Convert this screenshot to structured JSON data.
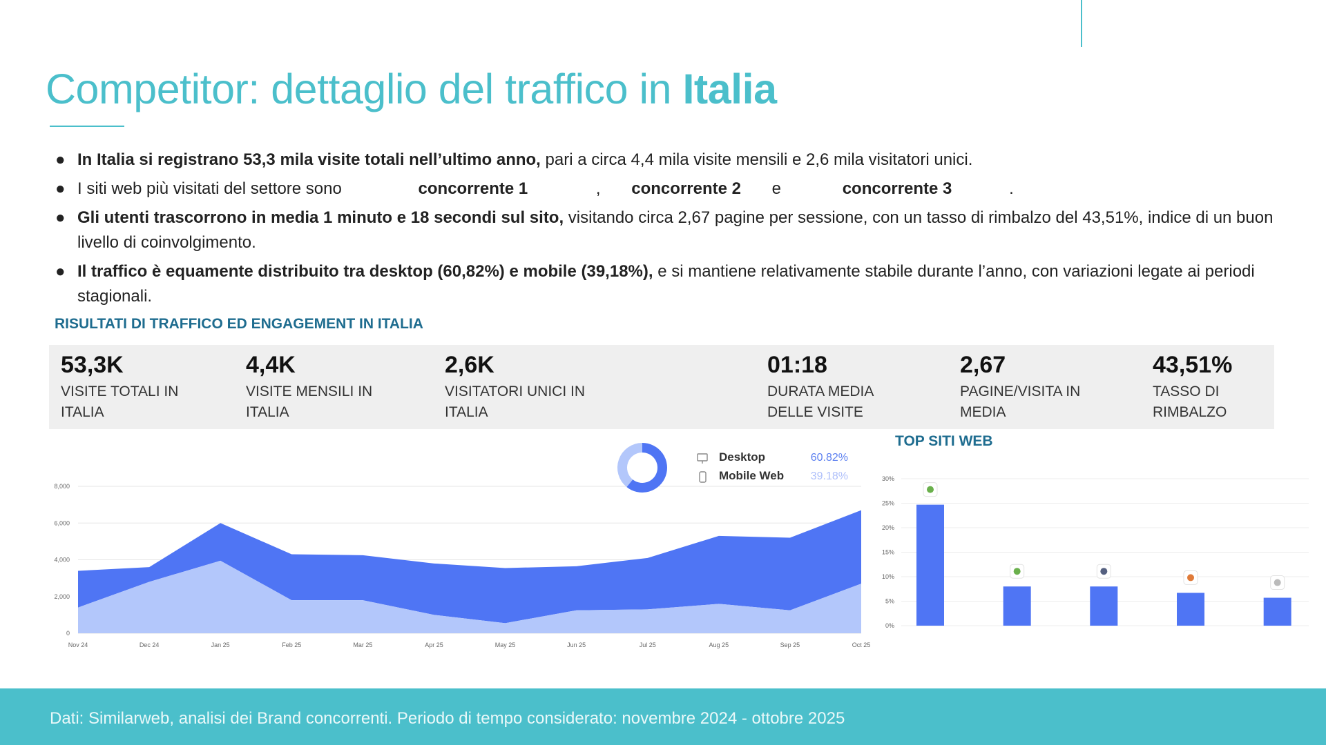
{
  "title": {
    "prefix": "Competitor: dettaglio del traffico in ",
    "strong": "Italia"
  },
  "bullets": {
    "b1": {
      "bold": "In Italia si registrano 53,3 mila visite totali nell’ultimo anno,",
      "text": " pari a circa 4,4 mila visite mensili e 2,6 mila visitatori unici."
    },
    "b2": {
      "text": "I siti web più visitati del settore sono",
      "c1": "concorrente 1",
      "comma": ",",
      "c2": "concorrente 2",
      "and": "e",
      "c3": "concorrente 3",
      "period": "."
    },
    "b3": {
      "bold": "Gli utenti trascorrono in media 1 minuto e 18 secondi sul sito,",
      "text": " visitando circa 2,67 pagine per sessione, con un tasso di rimbalzo del 43,51%, indice di un buon livello di coinvolgimento."
    },
    "b4": {
      "bold": "Il traffico è equamente distribuito tra desktop (60,82%) e mobile (39,18%),",
      "text": " e si mantiene relativamente stabile durante l’anno, con variazioni legate ai periodi stagionali."
    }
  },
  "section_title": "RISULTATI DI TRAFFICO ED ENGAGEMENT IN ITALIA",
  "kpis": [
    {
      "value": "53,3K",
      "line1": "VISITE TOTALI IN",
      "line2": "ITALIA"
    },
    {
      "value": "4,4K",
      "line1": "VISITE MENSILI IN",
      "line2": "ITALIA"
    },
    {
      "value": "2,6K",
      "line1": "VISITATORI UNICI IN",
      "line2": "ITALIA"
    },
    {
      "value": "01:18",
      "line1": "DURATA MEDIA",
      "line2": "DELLE VISITE"
    },
    {
      "value": "2,67",
      "line1": "PAGINE/VISITA IN",
      "line2": "MEDIA"
    },
    {
      "value": "43,51%",
      "line1": "TASSO DI",
      "line2": "RIMBALZO"
    }
  ],
  "top_sites_title": "TOP SITI WEB",
  "footer": "Dati: Similarweb, analisi dei Brand concorrenti. Periodo di tempo considerato: novembre 2024 - ottobre 2025",
  "colors": {
    "accent": "#4bbfcb",
    "section": "#1e6c8f",
    "desktop": "#4f75f4",
    "mobile": "#b3c7fb",
    "bar": "#4f75f4"
  },
  "chart_data": [
    {
      "type": "area",
      "x": [
        "Nov 24",
        "Dec 24",
        "Jan 25",
        "Feb 25",
        "Mar 25",
        "Apr 25",
        "May 25",
        "Jun 25",
        "Jul 25",
        "Aug 25",
        "Sep 25",
        "Oct 25"
      ],
      "yticks": [
        "0",
        "2,000",
        "4,000",
        "6,000",
        "8,000"
      ],
      "ylim": [
        0,
        8000
      ],
      "stacked": true,
      "series": [
        {
          "name": "Mobile Web",
          "values": [
            1400,
            2800,
            3950,
            1800,
            1800,
            1000,
            550,
            1250,
            1300,
            1600,
            1250,
            2700
          ]
        },
        {
          "name": "Desktop",
          "values": [
            2000,
            800,
            2050,
            2500,
            2450,
            2800,
            3000,
            2400,
            2800,
            3700,
            3950,
            4000
          ]
        }
      ],
      "grid": true
    },
    {
      "type": "pie",
      "donut": true,
      "labels": [
        "Desktop",
        "Mobile Web"
      ],
      "values": [
        60.82,
        39.18
      ],
      "value_labels": [
        "60.82%",
        "39.18%"
      ]
    },
    {
      "type": "bar",
      "title": "TOP SITI WEB",
      "categories": [
        "",
        "",
        "",
        "",
        ""
      ],
      "values": [
        24.7,
        8.0,
        8.0,
        6.7,
        5.7
      ],
      "yticks": [
        "0%",
        "5%",
        "10%",
        "15%",
        "20%",
        "25%",
        "30%"
      ],
      "ylim": [
        0,
        30
      ],
      "grid": true
    }
  ]
}
